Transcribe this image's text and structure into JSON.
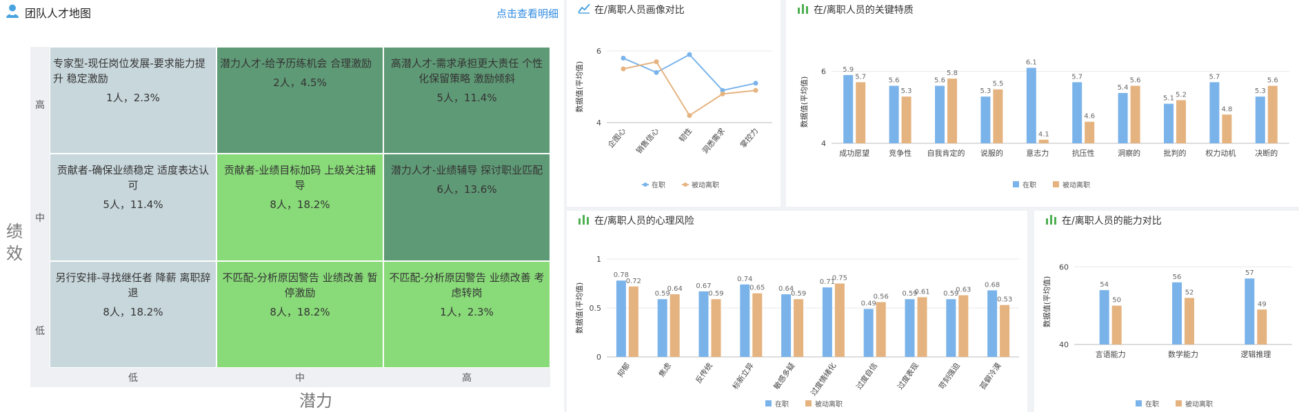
{
  "talent_map": {
    "title": "团队人才地图",
    "link": "点击查看明细",
    "y_axis_name": "绩效",
    "x_axis_name": "潜力",
    "y_levels": [
      "高",
      "中",
      "低"
    ],
    "x_levels": [
      "低",
      "中",
      "高"
    ],
    "colors": {
      "grey": "#c8d7dc",
      "dark": "#5f9a76",
      "light": "#89da79"
    },
    "cells": [
      {
        "text": "专家型-现任岗位发展-要求能力提升 稳定激励",
        "value": "1人，2.3%",
        "tone": "grey",
        "align": "left"
      },
      {
        "text": "潜力人才-给予历练机会 合理激励",
        "value": "2人，4.5%",
        "tone": "dark",
        "align": "left"
      },
      {
        "text": "高潜人才-需求承担更大责任 个性化保留策略 激励倾斜",
        "value": "5人，11.4%",
        "tone": "dark",
        "align": "center"
      },
      {
        "text": "贡献者-确保业绩稳定 适度表达认可",
        "value": "5人，11.4%",
        "tone": "grey",
        "align": "center"
      },
      {
        "text": "贡献者-业绩目标加码 上级关注辅导",
        "value": "8人，18.2%",
        "tone": "light",
        "align": "center"
      },
      {
        "text": "潜力人才-业绩辅导 探讨职业匹配",
        "value": "6人，13.6%",
        "tone": "dark",
        "align": "center"
      },
      {
        "text": "另行安排-寻找继任者 降薪 离职辞退",
        "value": "8人，18.2%",
        "tone": "grey",
        "align": "center"
      },
      {
        "text": "不匹配-分析原因警告 业绩改善 暂停激励",
        "value": "8人，18.2%",
        "tone": "light",
        "align": "center"
      },
      {
        "text": "不匹配-分析原因警告 业绩改善 考虑转岗",
        "value": "1人，2.3%",
        "tone": "light",
        "align": "center"
      }
    ]
  },
  "chart_data": [
    {
      "type": "line",
      "title": "在/离职人员画像对比",
      "ylabel": "数据值(平均值)",
      "ylim": [
        4,
        6
      ],
      "yticks": [
        4,
        6
      ],
      "categories": [
        "企图心",
        "销售信心",
        "韧性",
        "洞悉需求",
        "掌控力"
      ],
      "series": [
        {
          "name": "在职",
          "color": "#7ab3ea",
          "values": [
            5.8,
            5.4,
            5.9,
            4.9,
            5.1
          ]
        },
        {
          "name": "被动离职",
          "color": "#e5b37f",
          "values": [
            5.5,
            5.7,
            4.2,
            4.8,
            4.9
          ]
        }
      ]
    },
    {
      "type": "bar",
      "title": "在/离职人员的关键特质",
      "ylabel": "数据值(平均值)",
      "ylim": [
        4,
        6.3
      ],
      "yticks": [
        4,
        6
      ],
      "categories": [
        "成功愿望",
        "竞争性",
        "自我肯定的",
        "说服的",
        "意志力",
        "抗压性",
        "洞察的",
        "批判的",
        "权力动机",
        "决断的"
      ],
      "series": [
        {
          "name": "在职",
          "color": "#7ab3ea",
          "values": [
            5.9,
            5.6,
            5.6,
            5.3,
            6.1,
            5.7,
            5.4,
            5.1,
            5.7,
            5.3
          ]
        },
        {
          "name": "被动离职",
          "color": "#e5b37f",
          "values": [
            5.7,
            5.3,
            5.8,
            5.5,
            4.1,
            4.6,
            5.6,
            5.2,
            4.8,
            5.6
          ]
        }
      ]
    },
    {
      "type": "bar",
      "title": "在/离职人员的心理风险",
      "ylabel": "数据值(平均值)",
      "ylim": [
        0,
        1
      ],
      "yticks": [
        0,
        0.5,
        1
      ],
      "categories": [
        "抑郁",
        "焦虑",
        "反传统",
        "标新立异",
        "敏感多疑",
        "过度情绪化",
        "过度自信",
        "过度表现",
        "苛刻强迫",
        "孤僻冷漠"
      ],
      "series": [
        {
          "name": "在职",
          "color": "#7ab3ea",
          "values": [
            0.78,
            0.59,
            0.67,
            0.74,
            0.64,
            0.71,
            0.49,
            0.59,
            0.59,
            0.68
          ]
        },
        {
          "name": "被动离职",
          "color": "#e5b37f",
          "values": [
            0.72,
            0.64,
            0.59,
            0.65,
            0.59,
            0.75,
            0.56,
            0.61,
            0.63,
            0.53
          ]
        }
      ]
    },
    {
      "type": "bar",
      "title": "在/离职人员的能力对比",
      "ylabel": "数据值(平均值)",
      "ylim": [
        40,
        62
      ],
      "yticks": [
        40,
        60
      ],
      "categories": [
        "言语能力",
        "数学能力",
        "逻辑推理"
      ],
      "series": [
        {
          "name": "在职",
          "color": "#7ab3ea",
          "values": [
            54,
            56,
            57
          ]
        },
        {
          "name": "被动离职",
          "color": "#e5b37f",
          "values": [
            50,
            52,
            49
          ]
        }
      ]
    }
  ]
}
